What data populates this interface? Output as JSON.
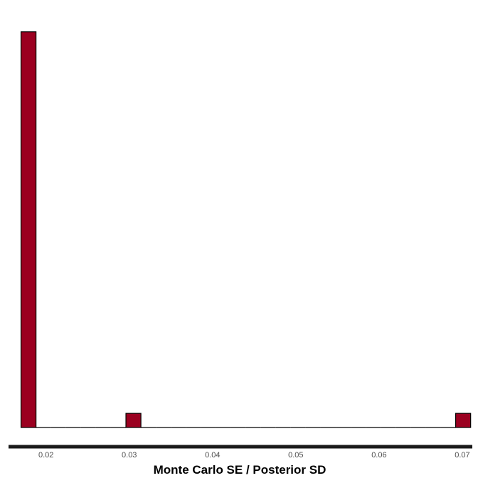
{
  "chart_data": {
    "type": "bar",
    "title": "",
    "xlabel": "Monte Carlo SE / Posterior SD",
    "ylabel": "",
    "xlim": [
      0.0155,
      0.0712
    ],
    "ylim": [
      0,
      30
    ],
    "x_ticks": [
      0.02,
      0.03,
      0.04,
      0.05,
      0.06,
      0.07
    ],
    "x_tick_labels": [
      "0.02",
      "0.03",
      "0.04",
      "0.05",
      "0.06",
      "0.07"
    ],
    "y_axis_shown": false,
    "grid": false,
    "legend": "none",
    "bin_width": 0.0018,
    "bins": [
      {
        "x0": 0.017,
        "x1": 0.0188,
        "count": 28
      },
      {
        "x0": 0.0188,
        "x1": 0.0206,
        "count": 0
      },
      {
        "x0": 0.0206,
        "x1": 0.0224,
        "count": 0
      },
      {
        "x0": 0.0224,
        "x1": 0.0242,
        "count": 0
      },
      {
        "x0": 0.0242,
        "x1": 0.026,
        "count": 0
      },
      {
        "x0": 0.026,
        "x1": 0.0278,
        "count": 0
      },
      {
        "x0": 0.0278,
        "x1": 0.0296,
        "count": 0
      },
      {
        "x0": 0.0296,
        "x1": 0.0314,
        "count": 1
      },
      {
        "x0": 0.0314,
        "x1": 0.0332,
        "count": 0
      },
      {
        "x0": 0.0332,
        "x1": 0.035,
        "count": 0
      },
      {
        "x0": 0.035,
        "x1": 0.0368,
        "count": 0
      },
      {
        "x0": 0.0368,
        "x1": 0.0386,
        "count": 0
      },
      {
        "x0": 0.0386,
        "x1": 0.0404,
        "count": 0
      },
      {
        "x0": 0.0404,
        "x1": 0.0422,
        "count": 0
      },
      {
        "x0": 0.0422,
        "x1": 0.044,
        "count": 0
      },
      {
        "x0": 0.044,
        "x1": 0.0458,
        "count": 0
      },
      {
        "x0": 0.0458,
        "x1": 0.0476,
        "count": 0
      },
      {
        "x0": 0.0476,
        "x1": 0.0494,
        "count": 0
      },
      {
        "x0": 0.0494,
        "x1": 0.0512,
        "count": 0
      },
      {
        "x0": 0.0512,
        "x1": 0.053,
        "count": 0
      },
      {
        "x0": 0.053,
        "x1": 0.0548,
        "count": 0
      },
      {
        "x0": 0.0548,
        "x1": 0.0566,
        "count": 0
      },
      {
        "x0": 0.0566,
        "x1": 0.0584,
        "count": 0
      },
      {
        "x0": 0.0584,
        "x1": 0.0602,
        "count": 0
      },
      {
        "x0": 0.0602,
        "x1": 0.062,
        "count": 0
      },
      {
        "x0": 0.062,
        "x1": 0.0638,
        "count": 0
      },
      {
        "x0": 0.0638,
        "x1": 0.0656,
        "count": 0
      },
      {
        "x0": 0.0656,
        "x1": 0.0674,
        "count": 0
      },
      {
        "x0": 0.0674,
        "x1": 0.0692,
        "count": 0
      },
      {
        "x0": 0.0692,
        "x1": 0.071,
        "count": 1
      }
    ],
    "colors": {
      "bar_fill": "#9b0020",
      "bar_outline": "#000000",
      "axis_line": "#1a1a1a",
      "tick_text": "#4d4d4d",
      "title_text": "#000000"
    }
  }
}
